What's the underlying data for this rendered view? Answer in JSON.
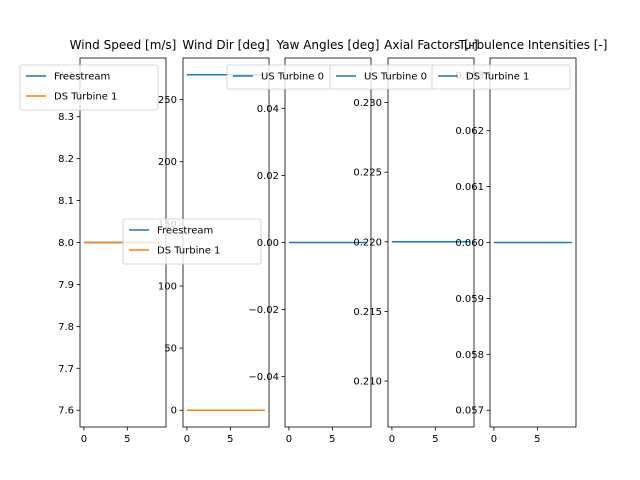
{
  "figure": {
    "background": "#ffffff"
  },
  "colors": {
    "series1": "#1f77b4",
    "series2": "#ff7f0e"
  },
  "chart_data": [
    {
      "type": "line",
      "title": "Wind Speed [m/s]",
      "xlim": [
        -0.45,
        9.45
      ],
      "ylim": [
        7.56,
        8.44
      ],
      "xticks": [
        0,
        5
      ],
      "yticks": [
        7.6,
        7.7,
        7.8,
        7.9,
        8.0,
        8.1,
        8.2,
        8.3,
        8.4
      ],
      "ytick_labels": [
        "7.6",
        "7.7",
        "7.8",
        "7.9",
        "8.0",
        "8.1",
        "8.2",
        "8.3",
        "8.4"
      ],
      "legend": {
        "placement": "upper-left",
        "entries": [
          "Freestream",
          "DS Turbine 1"
        ]
      },
      "series": [
        {
          "name": "Freestream",
          "color": "#1f77b4",
          "x": [
            0,
            9
          ],
          "y": [
            8.0,
            8.0
          ]
        },
        {
          "name": "DS Turbine 1",
          "color": "#ff7f0e",
          "x": [
            0,
            9
          ],
          "y": [
            8.0,
            8.0
          ]
        }
      ]
    },
    {
      "type": "line",
      "title": "Wind Dir [deg]",
      "xlim": [
        -0.45,
        9.45
      ],
      "ylim": [
        -13.5,
        283.5
      ],
      "xticks": [
        0,
        5
      ],
      "yticks": [
        0,
        50,
        100,
        150,
        200,
        250
      ],
      "ytick_labels": [
        "0",
        "50",
        "100",
        "150",
        "200",
        "250"
      ],
      "legend": {
        "placement": "center",
        "entries": [
          "Freestream",
          "DS Turbine 1"
        ]
      },
      "series": [
        {
          "name": "Freestream",
          "color": "#1f77b4",
          "x": [
            0,
            9
          ],
          "y": [
            270,
            270
          ]
        },
        {
          "name": "DS Turbine 1",
          "color": "#ff7f0e",
          "x": [
            0,
            9
          ],
          "y": [
            0,
            0
          ]
        }
      ]
    },
    {
      "type": "line",
      "title": "Yaw Angles [deg]",
      "xlim": [
        -0.45,
        9.45
      ],
      "ylim": [
        -0.055,
        0.055
      ],
      "xticks": [
        0,
        5
      ],
      "yticks": [
        -0.04,
        -0.02,
        0.0,
        0.02,
        0.04
      ],
      "ytick_labels": [
        "−0.04",
        "−0.02",
        "0.00",
        "0.02",
        "0.04"
      ],
      "legend": {
        "placement": "upper-right",
        "entries": [
          "US Turbine 0"
        ]
      },
      "series": [
        {
          "name": "US Turbine 0",
          "color": "#1f77b4",
          "x": [
            0,
            9
          ],
          "y": [
            0,
            0
          ]
        }
      ]
    },
    {
      "type": "line",
      "title": "Axial Factors [-]",
      "xlim": [
        -0.45,
        9.45
      ],
      "ylim": [
        0.2067,
        0.2332
      ],
      "xticks": [
        0,
        5
      ],
      "yticks": [
        0.21,
        0.215,
        0.22,
        0.225,
        0.23
      ],
      "ytick_labels": [
        "0.210",
        "0.215",
        "0.220",
        "0.225",
        "0.230"
      ],
      "legend": {
        "placement": "upper-right",
        "entries": [
          "US Turbine 0"
        ]
      },
      "series": [
        {
          "name": "US Turbine 0",
          "color": "#1f77b4",
          "x": [
            0,
            9
          ],
          "y": [
            0.22,
            0.22
          ]
        }
      ]
    },
    {
      "type": "line",
      "title": "Turbulence Intensities [-]",
      "xlim": [
        -0.45,
        9.45
      ],
      "ylim": [
        0.0567,
        0.0633
      ],
      "xticks": [
        0,
        5
      ],
      "yticks": [
        0.057,
        0.058,
        0.059,
        0.06,
        0.061,
        0.062,
        0.063
      ],
      "ytick_labels": [
        "0.057",
        "0.058",
        "0.059",
        "0.060",
        "0.061",
        "0.062",
        "0.063"
      ],
      "legend": {
        "placement": "upper-right",
        "entries": [
          "DS Turbine 1"
        ]
      },
      "series": [
        {
          "name": "DS Turbine 1",
          "color": "#1f77b4",
          "x": [
            0,
            9
          ],
          "y": [
            0.06,
            0.06
          ]
        }
      ]
    }
  ]
}
